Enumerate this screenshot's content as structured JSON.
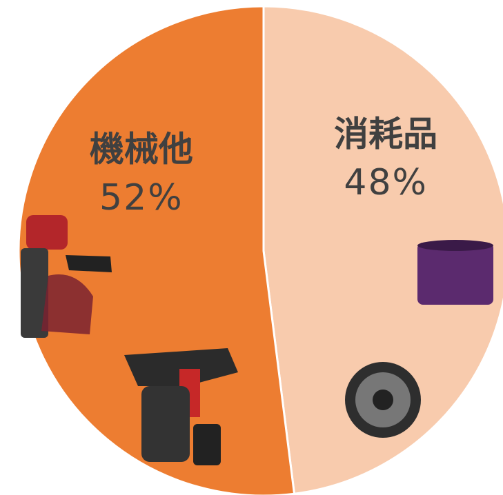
{
  "chart_data": {
    "type": "pie",
    "categories": [
      "消耗品",
      "機械他"
    ],
    "values": [
      48,
      52
    ],
    "value_labels": [
      "48%",
      "52%"
    ],
    "colors": [
      "#F8CBAD",
      "#ED7D31"
    ]
  }
}
